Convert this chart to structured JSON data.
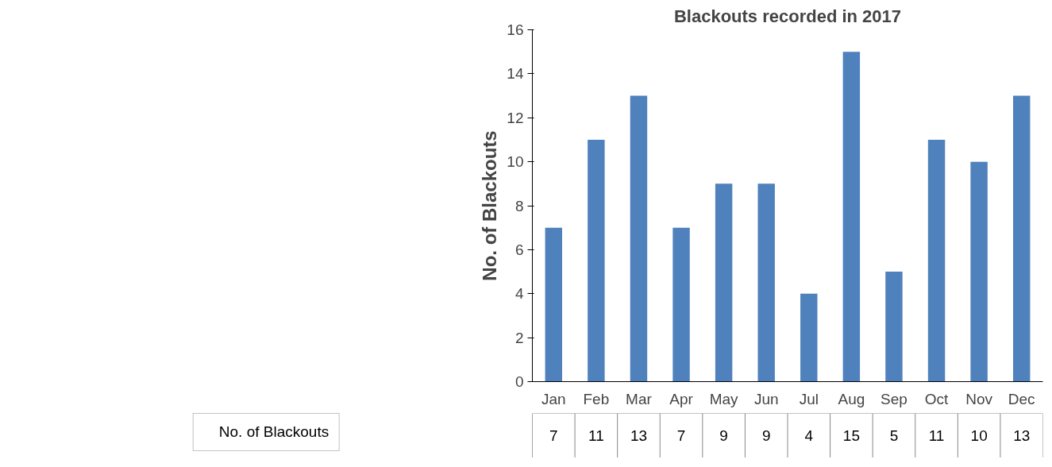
{
  "chart_data": {
    "type": "bar",
    "title": "Blackouts recorded in 2017",
    "ylabel": "No. of Blackouts",
    "categories": [
      "Jan",
      "Feb",
      "Mar",
      "Apr",
      "May",
      "Jun",
      "Jul",
      "Aug",
      "Sep",
      "Oct",
      "Nov",
      "Dec"
    ],
    "series": [
      {
        "name": "No. of Blackouts",
        "color": "#4f81bd",
        "values": [
          7,
          11,
          13,
          7,
          9,
          9,
          4,
          15,
          5,
          11,
          10,
          13
        ]
      }
    ],
    "ylim": [
      0,
      16
    ],
    "yticks": [
      0,
      2,
      4,
      6,
      8,
      10,
      12,
      14,
      16
    ],
    "grid": false,
    "legend": "bottom",
    "data_labels": true
  }
}
